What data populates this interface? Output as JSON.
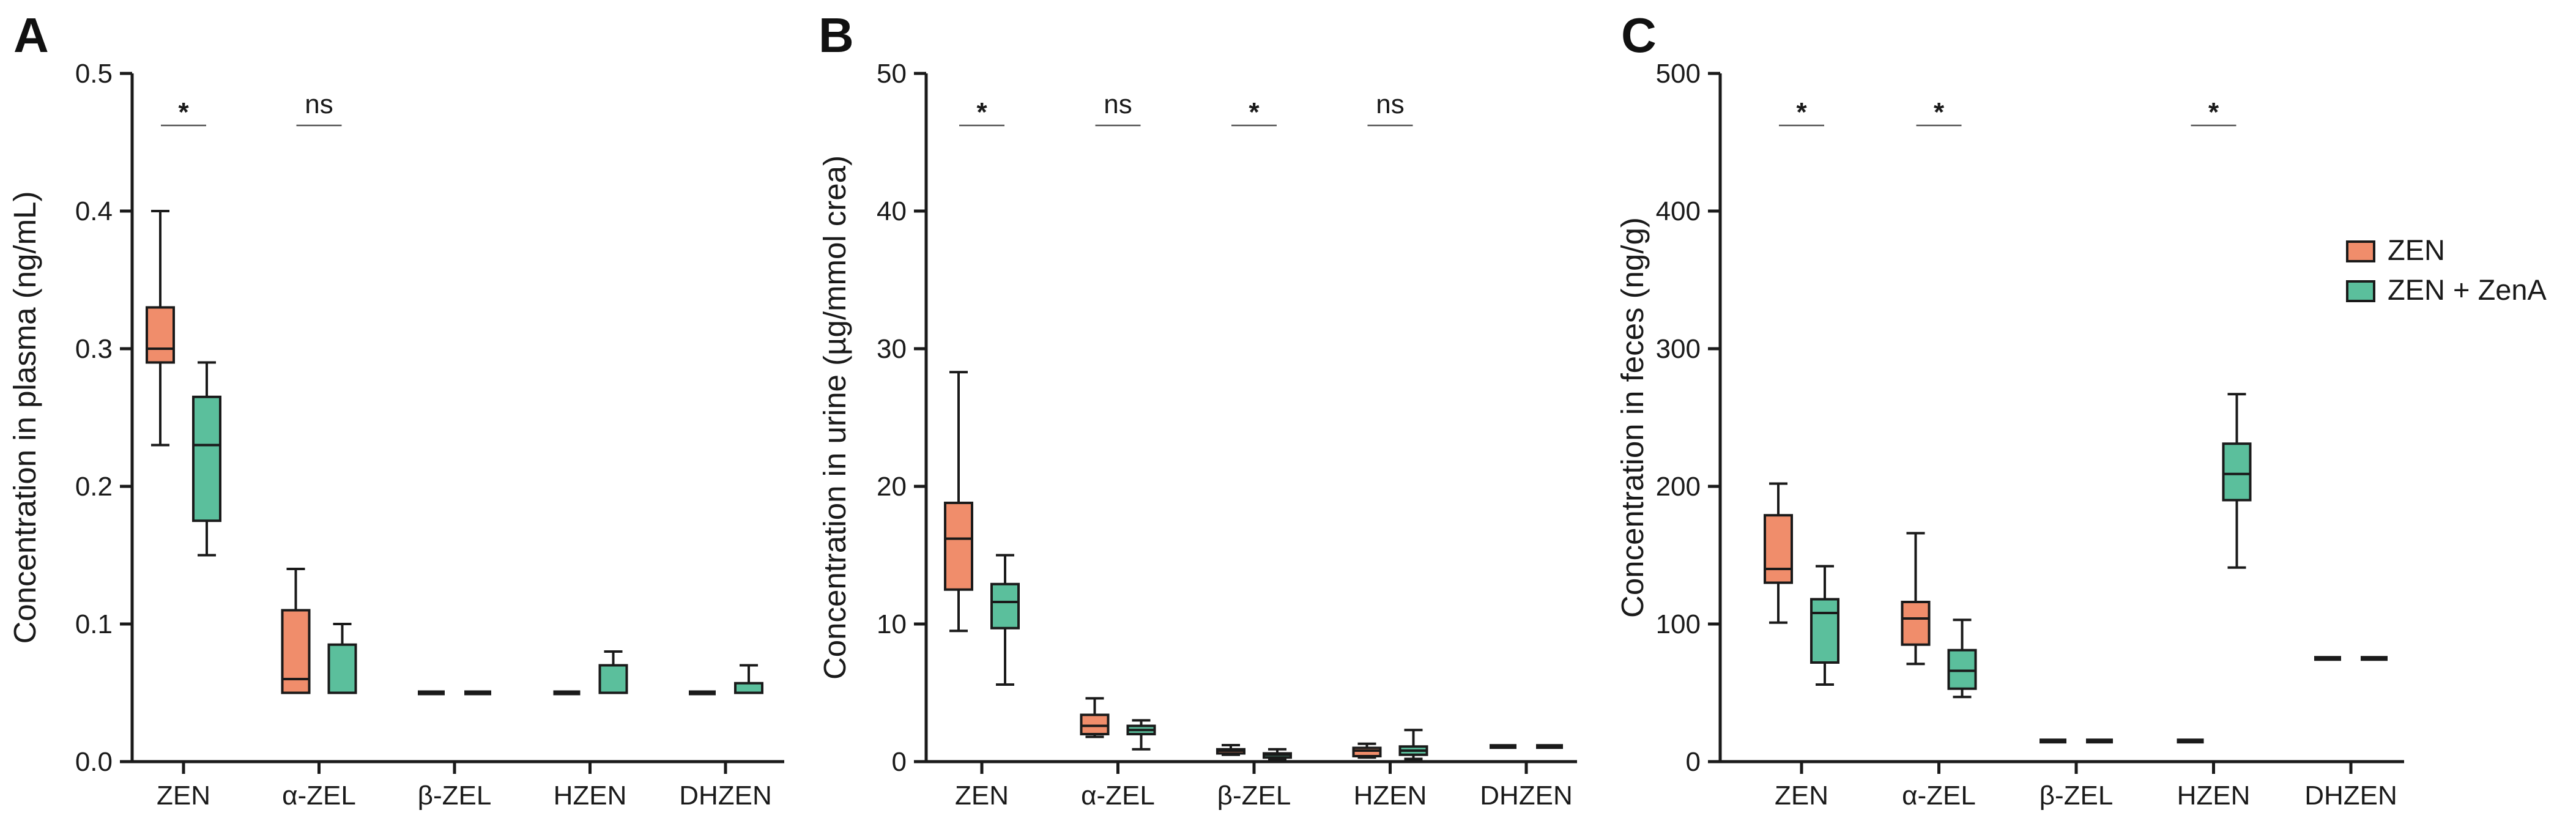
{
  "chart_data": [
    {
      "type": "boxplot",
      "panel": "A",
      "ylabel": "Concentration in plasma (ng/mL)",
      "ylim": [
        0,
        0.5
      ],
      "yticks": [
        0.0,
        0.1,
        0.2,
        0.3,
        0.4,
        0.5
      ],
      "ytick_labels": [
        "0.0",
        "0.1",
        "0.2",
        "0.3",
        "0.4",
        "0.5"
      ],
      "categories": [
        "ZEN",
        "α-ZEL",
        "β-ZEL",
        "HZEN",
        "DHZEN"
      ],
      "series": [
        {
          "name": "ZEN",
          "boxes": [
            {
              "min": 0.23,
              "q1": 0.29,
              "median": 0.3,
              "q3": 0.33,
              "max": 0.4
            },
            {
              "min": 0.05,
              "q1": 0.05,
              "median": 0.06,
              "q3": 0.11,
              "max": 0.14
            },
            {
              "min": 0.05,
              "q1": 0.05,
              "median": 0.05,
              "q3": 0.05,
              "max": 0.05
            },
            {
              "min": 0.05,
              "q1": 0.05,
              "median": 0.05,
              "q3": 0.05,
              "max": 0.05
            },
            {
              "min": 0.05,
              "q1": 0.05,
              "median": 0.05,
              "q3": 0.05,
              "max": 0.05
            }
          ]
        },
        {
          "name": "ZEN + ZenA",
          "boxes": [
            {
              "min": 0.15,
              "q1": 0.175,
              "median": 0.23,
              "q3": 0.265,
              "max": 0.29
            },
            {
              "min": 0.05,
              "q1": 0.05,
              "median": 0.05,
              "q3": 0.085,
              "max": 0.1
            },
            {
              "min": 0.05,
              "q1": 0.05,
              "median": 0.05,
              "q3": 0.05,
              "max": 0.05
            },
            {
              "min": 0.05,
              "q1": 0.05,
              "median": 0.05,
              "q3": 0.07,
              "max": 0.08
            },
            {
              "min": 0.05,
              "q1": 0.05,
              "median": 0.05,
              "q3": 0.057,
              "max": 0.07
            }
          ]
        }
      ],
      "significance": [
        {
          "category_index": 0,
          "label": "*"
        },
        {
          "category_index": 1,
          "label": "ns"
        }
      ]
    },
    {
      "type": "boxplot",
      "panel": "B",
      "ylabel": "Concentration in urine (µg/mmol crea)",
      "ylim": [
        0,
        50
      ],
      "yticks": [
        0,
        10,
        20,
        30,
        40,
        50
      ],
      "ytick_labels": [
        "0",
        "10",
        "20",
        "30",
        "40",
        "50"
      ],
      "categories": [
        "ZEN",
        "α-ZEL",
        "β-ZEL",
        "HZEN",
        "DHZEN"
      ],
      "series": [
        {
          "name": "ZEN",
          "boxes": [
            {
              "min": 9.5,
              "q1": 12.5,
              "median": 16.2,
              "q3": 18.8,
              "max": 28.3
            },
            {
              "min": 1.8,
              "q1": 2.0,
              "median": 2.6,
              "q3": 3.4,
              "max": 4.6
            },
            {
              "min": 0.5,
              "q1": 0.6,
              "median": 0.8,
              "q3": 0.9,
              "max": 1.2
            },
            {
              "min": 0.3,
              "q1": 0.4,
              "median": 0.8,
              "q3": 1.0,
              "max": 1.3
            },
            {
              "min": 1.1,
              "q1": 1.1,
              "median": 1.1,
              "q3": 1.1,
              "max": 1.1
            }
          ]
        },
        {
          "name": "ZEN + ZenA",
          "boxes": [
            {
              "min": 5.6,
              "q1": 9.7,
              "median": 11.6,
              "q3": 12.9,
              "max": 15.0
            },
            {
              "min": 0.9,
              "q1": 2.0,
              "median": 2.3,
              "q3": 2.6,
              "max": 3.0
            },
            {
              "min": 0.2,
              "q1": 0.3,
              "median": 0.5,
              "q3": 0.6,
              "max": 0.9
            },
            {
              "min": 0.2,
              "q1": 0.5,
              "median": 0.8,
              "q3": 1.1,
              "max": 2.3
            },
            {
              "min": 1.1,
              "q1": 1.1,
              "median": 1.1,
              "q3": 1.1,
              "max": 1.1
            }
          ]
        }
      ],
      "significance": [
        {
          "category_index": 0,
          "label": "*"
        },
        {
          "category_index": 1,
          "label": "ns"
        },
        {
          "category_index": 2,
          "label": "*"
        },
        {
          "category_index": 3,
          "label": "ns"
        }
      ]
    },
    {
      "type": "boxplot",
      "panel": "C",
      "ylabel": "Concentration in feces (ng/g)",
      "ylim": [
        0,
        500
      ],
      "yticks": [
        0,
        100,
        200,
        300,
        400,
        500
      ],
      "ytick_labels": [
        "0",
        "100",
        "200",
        "300",
        "400",
        "500"
      ],
      "categories": [
        "ZEN",
        "α-ZEL",
        "β-ZEL",
        "HZEN",
        "DHZEN"
      ],
      "series": [
        {
          "name": "ZEN",
          "boxes": [
            {
              "min": 101,
              "q1": 130,
              "median": 140,
              "q3": 179,
              "max": 202
            },
            {
              "min": 71,
              "q1": 85,
              "median": 104,
              "q3": 116,
              "max": 166
            },
            {
              "min": 15,
              "q1": 15,
              "median": 15,
              "q3": 15,
              "max": 15
            },
            {
              "min": 15,
              "q1": 15,
              "median": 15,
              "q3": 15,
              "max": 15
            },
            {
              "min": 75,
              "q1": 75,
              "median": 75,
              "q3": 75,
              "max": 75
            }
          ]
        },
        {
          "name": "ZEN + ZenA",
          "boxes": [
            {
              "min": 56,
              "q1": 72,
              "median": 108,
              "q3": 118,
              "max": 142
            },
            {
              "min": 47,
              "q1": 53,
              "median": 66,
              "q3": 81,
              "max": 103
            },
            {
              "min": 15,
              "q1": 15,
              "median": 15,
              "q3": 15,
              "max": 15
            },
            {
              "min": 141,
              "q1": 190,
              "median": 209,
              "q3": 231,
              "max": 267
            },
            {
              "min": 75,
              "q1": 75,
              "median": 75,
              "q3": 75,
              "max": 75
            }
          ]
        }
      ],
      "significance": [
        {
          "category_index": 0,
          "label": "*"
        },
        {
          "category_index": 1,
          "label": "*"
        },
        {
          "category_index": 3,
          "label": "*"
        }
      ]
    }
  ],
  "legend": {
    "placement": "right",
    "entries": [
      {
        "label": "ZEN",
        "color": "#f08d6b"
      },
      {
        "label": "ZEN + ZenA",
        "color": "#5bbf9c"
      }
    ]
  },
  "colors": {
    "ZEN": "#f08d6b",
    "ZEN + ZenA": "#5bbf9c",
    "stroke": "#1a1a1a"
  }
}
